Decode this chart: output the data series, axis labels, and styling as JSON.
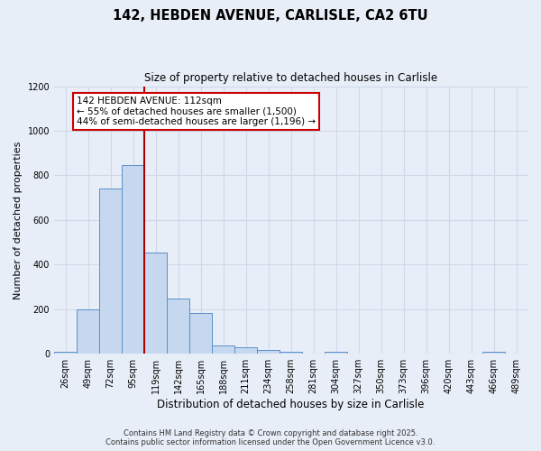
{
  "title_line1": "142, HEBDEN AVENUE, CARLISLE, CA2 6TU",
  "title_line2": "Size of property relative to detached houses in Carlisle",
  "xlabel": "Distribution of detached houses by size in Carlisle",
  "ylabel": "Number of detached properties",
  "categories": [
    "26sqm",
    "49sqm",
    "72sqm",
    "95sqm",
    "119sqm",
    "142sqm",
    "165sqm",
    "188sqm",
    "211sqm",
    "234sqm",
    "258sqm",
    "281sqm",
    "304sqm",
    "327sqm",
    "350sqm",
    "373sqm",
    "396sqm",
    "420sqm",
    "443sqm",
    "466sqm",
    "489sqm"
  ],
  "values": [
    10,
    200,
    740,
    845,
    455,
    248,
    182,
    38,
    28,
    18,
    10,
    0,
    8,
    0,
    0,
    0,
    0,
    0,
    0,
    8,
    0
  ],
  "bar_color": "#c5d8f0",
  "bar_edge_color": "#5b8fc7",
  "background_color": "#e8eef8",
  "grid_color": "#d0d8e8",
  "vline_x": 3.5,
  "vline_color": "#aa0000",
  "annotation_text": "142 HEBDEN AVENUE: 112sqm\n← 55% of detached houses are smaller (1,500)\n44% of semi-detached houses are larger (1,196) →",
  "annotation_box_color": "#ffffff",
  "annotation_box_edge": "#cc0000",
  "ylim": [
    0,
    1200
  ],
  "yticks": [
    0,
    200,
    400,
    600,
    800,
    1000,
    1200
  ],
  "footer_line1": "Contains HM Land Registry data © Crown copyright and database right 2025.",
  "footer_line2": "Contains public sector information licensed under the Open Government Licence v3.0."
}
